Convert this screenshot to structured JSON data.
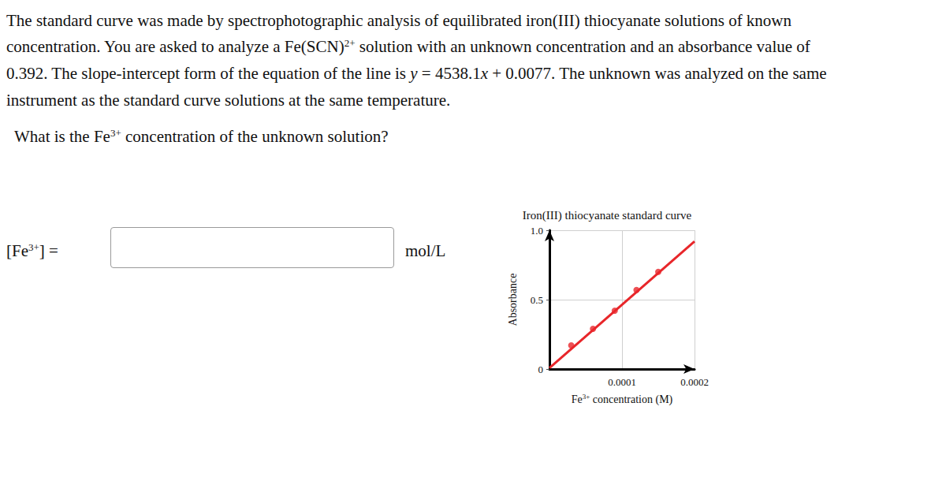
{
  "question": {
    "lines": [
      [
        {
          "text": "The standard curve was made by spectrophotographic analysis of equilibrated iron(III) thiocyanate solutions of known"
        }
      ],
      [
        {
          "text": "concentration. You are asked to analyze a Fe(SCN)"
        },
        {
          "sup": "2+"
        },
        {
          "text": " solution with an unknown concentration and an absorbance value of"
        }
      ],
      [
        {
          "text": "0.392. The slope-intercept form of the equation of the line is "
        },
        {
          "italic": "y"
        },
        {
          "text": " = 4538.1"
        },
        {
          "italic": "x"
        },
        {
          "text": " + 0.0077. The unknown was analyzed on the same"
        }
      ],
      [
        {
          "text": "instrument as the standard curve solutions at the same temperature."
        }
      ]
    ],
    "prompt": [
      {
        "text": "What is the Fe"
      },
      {
        "sup": "3+"
      },
      {
        "text": " concentration of the unknown solution?"
      }
    ]
  },
  "answer": {
    "label": [
      {
        "text": "[Fe"
      },
      {
        "sup": "3+"
      },
      {
        "text": "] ="
      }
    ],
    "unit": "mol/L"
  },
  "chart_data": {
    "type": "scatter",
    "title": "Iron(III) thiocyanate standard curve",
    "x_label": [
      {
        "text": "Fe"
      },
      {
        "sup": "3+"
      },
      {
        "text": " concentration (M)"
      }
    ],
    "y_label": "Absorbance",
    "xlim": [
      0,
      0.0002
    ],
    "xticks": [
      0.0001,
      0.0002
    ],
    "ylim": [
      0,
      1
    ],
    "yticks": [
      0,
      0.5,
      {
        "value": 1,
        "label": "1.0"
      }
    ],
    "grid": true,
    "series": [
      {
        "type": "scatter",
        "color": "#e8262a",
        "x": [
          3e-05,
          6e-05,
          9e-05,
          0.00012,
          0.00015
        ],
        "values": [
          0.17,
          0.29,
          0.42,
          0.57,
          0.7
        ]
      },
      {
        "type": "line",
        "color": "#e8262a",
        "x": [
          0,
          0.0002
        ],
        "values": [
          0.0077,
          0.92
        ]
      }
    ]
  }
}
